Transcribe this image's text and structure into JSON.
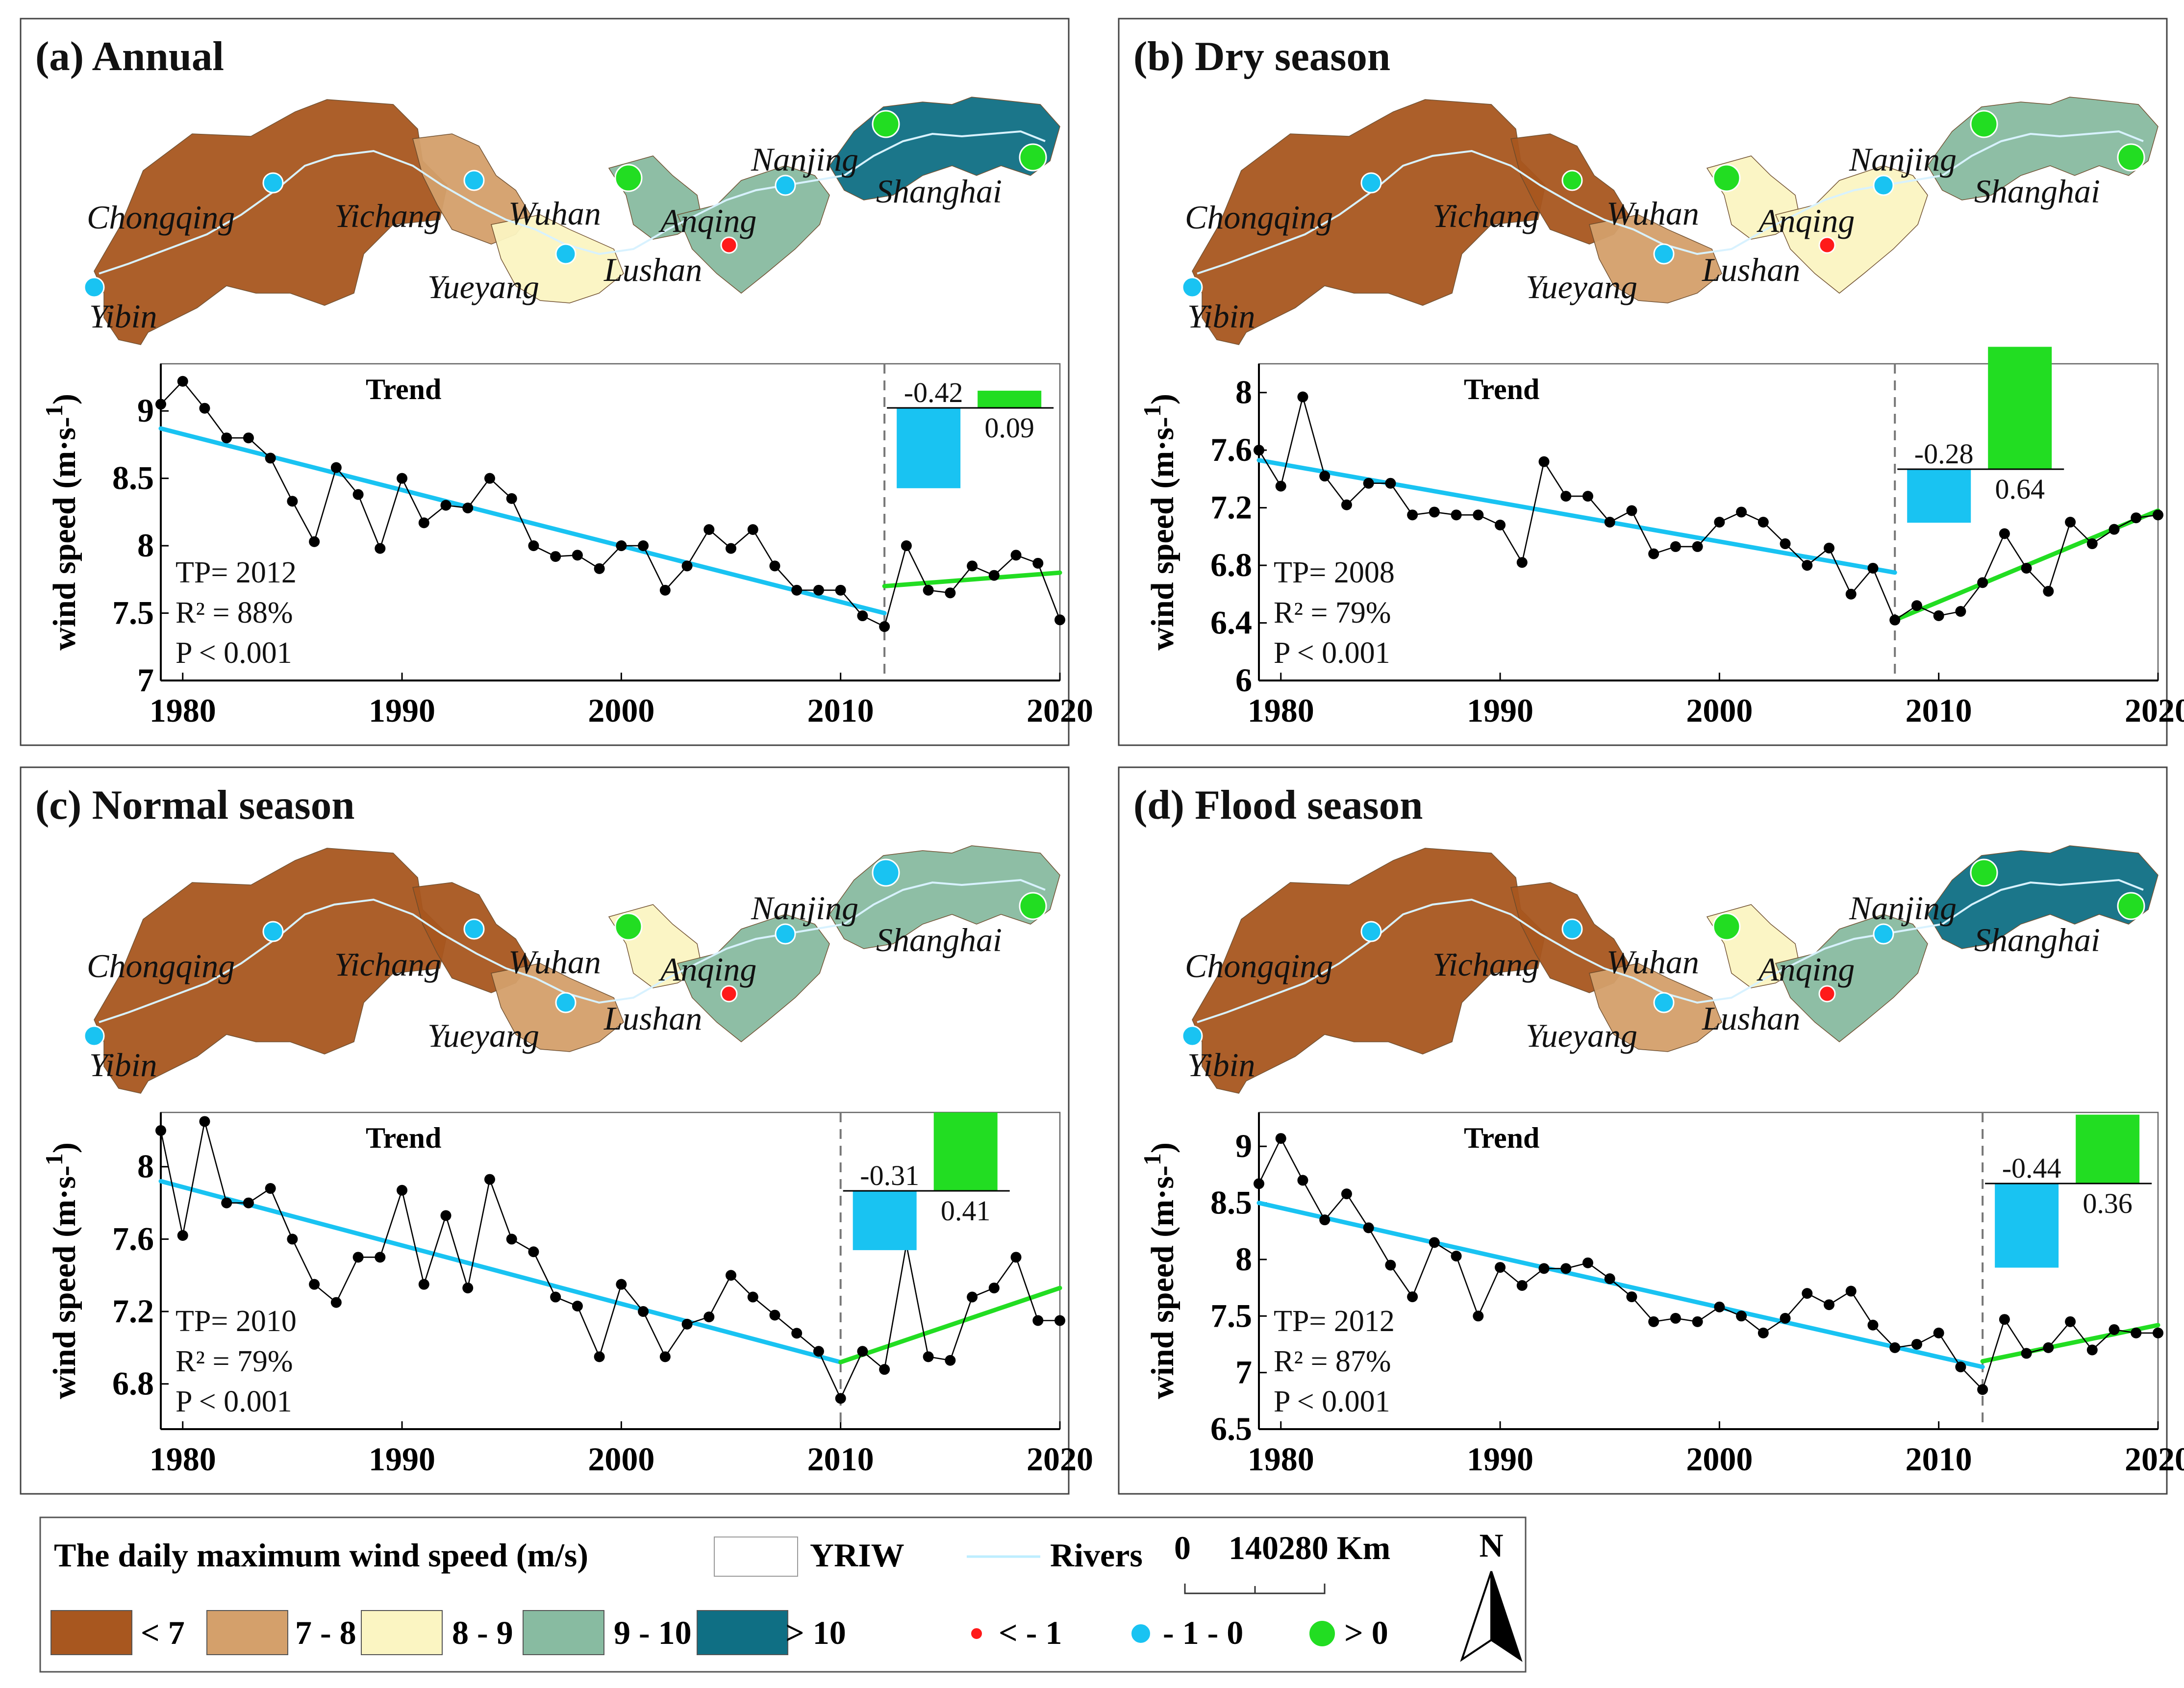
{
  "legend": {
    "title": "The daily maximum wind speed (m/s)",
    "yriw_label": "YRIW",
    "rivers_label": "Rivers",
    "scale_labels": [
      "0",
      "140",
      "280 Km"
    ],
    "north_label": "N",
    "classes": [
      {
        "label": "< 7",
        "color": "#a8571f"
      },
      {
        "label": "7 - 8",
        "color": "#d4a06b"
      },
      {
        "label": "8 - 9",
        "color": "#fbf5c2"
      },
      {
        "label": "9 - 10",
        "color": "#88bba1"
      },
      {
        "label": "> 10",
        "color": "#0f6f84"
      }
    ],
    "trend_classes": [
      {
        "label": "< - 1",
        "color": "#ff1a1a"
      },
      {
        "label": "- 1 - 0",
        "color": "#19c3f2"
      },
      {
        "label": "> 0",
        "color": "#22dd22"
      }
    ]
  },
  "cities": [
    "Chongqing",
    "Yichang",
    "Wuhan",
    "Anqing",
    "Nanjing",
    "Shanghai",
    "Yueyang",
    "Lushan",
    "Yibin"
  ],
  "panels": [
    {
      "title": "(a) Annual",
      "region_colors": [
        "#a8571f",
        "#d4a06b",
        "#fbf5c2",
        "#88bba1",
        "#88bba1",
        "#0f6f84"
      ],
      "station_colors": {
        "Yibin": "#19c3f2",
        "Chongqing": "#19c3f2",
        "Yichang": "#19c3f2",
        "Yueyang": "#19c3f2",
        "Wuhan": "#22dd22",
        "Anqing": "#ff1a1a",
        "Nanjing": "#19c3f2",
        "Upper": "#22dd22",
        "Shanghai": "#22dd22"
      }
    },
    {
      "title": "(b) Dry season",
      "region_colors": [
        "#a8571f",
        "#a8571f",
        "#d4a06b",
        "#fbf5c2",
        "#fbf5c2",
        "#88bba1"
      ],
      "station_colors": {
        "Yibin": "#19c3f2",
        "Chongqing": "#19c3f2",
        "Yichang": "#22dd22",
        "Yueyang": "#19c3f2",
        "Wuhan": "#22dd22",
        "Anqing": "#ff1a1a",
        "Nanjing": "#19c3f2",
        "Upper": "#22dd22",
        "Shanghai": "#22dd22"
      }
    },
    {
      "title": "(c) Normal season",
      "region_colors": [
        "#a8571f",
        "#a8571f",
        "#d4a06b",
        "#fbf5c2",
        "#88bba1",
        "#88bba1"
      ],
      "station_colors": {
        "Yibin": "#19c3f2",
        "Chongqing": "#19c3f2",
        "Yichang": "#19c3f2",
        "Yueyang": "#19c3f2",
        "Wuhan": "#22dd22",
        "Anqing": "#ff1a1a",
        "Nanjing": "#19c3f2",
        "Upper": "#19c3f2",
        "Shanghai": "#22dd22"
      }
    },
    {
      "title": "(d) Flood season",
      "region_colors": [
        "#a8571f",
        "#a8571f",
        "#d4a06b",
        "#fbf5c2",
        "#88bba1",
        "#0f6f84"
      ],
      "station_colors": {
        "Yibin": "#19c3f2",
        "Chongqing": "#19c3f2",
        "Yichang": "#19c3f2",
        "Yueyang": "#19c3f2",
        "Wuhan": "#22dd22",
        "Anqing": "#ff1a1a",
        "Nanjing": "#19c3f2",
        "Upper": "#22dd22",
        "Shanghai": "#22dd22"
      }
    }
  ],
  "chart_data": [
    {
      "type": "line",
      "panel": "(a) Annual",
      "title": "Trend",
      "ylabel": "wind speed (m·s-1)",
      "ylim": [
        7,
        9.35
      ],
      "yticks": [
        7,
        7.5,
        8,
        8.5,
        9
      ],
      "ytick_labels": [
        "7",
        "7.5",
        "8",
        "8.5",
        "9"
      ],
      "xlim": [
        1979,
        2020
      ],
      "xticks": [
        1980,
        1990,
        2000,
        2010,
        2020
      ],
      "x": [
        1979,
        1980,
        1981,
        1982,
        1983,
        1984,
        1985,
        1986,
        1987,
        1988,
        1989,
        1990,
        1991,
        1992,
        1993,
        1994,
        1995,
        1996,
        1997,
        1998,
        1999,
        2000,
        2001,
        2002,
        2003,
        2004,
        2005,
        2006,
        2007,
        2008,
        2009,
        2010,
        2011,
        2012,
        2013,
        2014,
        2015,
        2016,
        2017,
        2018,
        2019,
        2020
      ],
      "y": [
        9.05,
        9.22,
        9.02,
        8.8,
        8.8,
        8.65,
        8.33,
        8.03,
        8.58,
        8.38,
        7.98,
        8.5,
        8.17,
        8.3,
        8.28,
        8.5,
        8.35,
        8.0,
        7.92,
        7.93,
        7.83,
        8.0,
        8.0,
        7.67,
        7.85,
        8.12,
        7.98,
        8.12,
        7.85,
        7.67,
        7.67,
        7.67,
        7.48,
        7.4,
        8.0,
        7.67,
        7.65,
        7.85,
        7.78,
        7.93,
        7.87,
        7.45
      ],
      "tp": 2012,
      "fit1": {
        "x": [
          1979,
          2012
        ],
        "y": [
          8.87,
          7.5
        ],
        "color": "#19c3f2"
      },
      "fit2": {
        "x": [
          2012,
          2020
        ],
        "y": [
          7.7,
          7.8
        ],
        "color": "#22dd22"
      },
      "stats": [
        "TP= 2012",
        "R² = 88%",
        "P  < 0.001"
      ],
      "slopes": {
        "before": -0.42,
        "after": 0.09
      },
      "slope_labels": [
        "-0.42",
        "0.09"
      ]
    },
    {
      "type": "line",
      "panel": "(b) Dry season",
      "title": "Trend",
      "ylabel": "wind speed (m·s-1)",
      "ylim": [
        6,
        8.2
      ],
      "yticks": [
        6,
        6.4,
        6.8,
        7.2,
        7.6,
        8
      ],
      "ytick_labels": [
        "6",
        "6.4",
        "6.8",
        "7.2",
        "7.6",
        "8"
      ],
      "xlim": [
        1979,
        2020
      ],
      "xticks": [
        1980,
        1990,
        2000,
        2010,
        2020
      ],
      "x": [
        1979,
        1980,
        1981,
        1982,
        1983,
        1984,
        1985,
        1986,
        1987,
        1988,
        1989,
        1990,
        1991,
        1992,
        1993,
        1994,
        1995,
        1996,
        1997,
        1998,
        1999,
        2000,
        2001,
        2002,
        2003,
        2004,
        2005,
        2006,
        2007,
        2008,
        2009,
        2010,
        2011,
        2012,
        2013,
        2014,
        2015,
        2016,
        2017,
        2018,
        2019,
        2020
      ],
      "y": [
        7.6,
        7.35,
        7.97,
        7.42,
        7.22,
        7.37,
        7.37,
        7.15,
        7.17,
        7.15,
        7.15,
        7.08,
        6.82,
        7.52,
        7.28,
        7.28,
        7.1,
        7.18,
        6.88,
        6.93,
        6.93,
        7.1,
        7.17,
        7.1,
        6.95,
        6.8,
        6.92,
        6.6,
        6.78,
        6.42,
        6.52,
        6.45,
        6.48,
        6.68,
        7.02,
        6.78,
        6.62,
        7.1,
        6.95,
        7.05,
        7.13,
        7.15
      ],
      "tp": 2008,
      "fit1": {
        "x": [
          1979,
          2008
        ],
        "y": [
          7.53,
          6.75
        ],
        "color": "#19c3f2"
      },
      "fit2": {
        "x": [
          2008,
          2020
        ],
        "y": [
          6.42,
          7.18
        ],
        "color": "#22dd22"
      },
      "stats": [
        "TP= 2008",
        "R² = 79%",
        "P  < 0.001"
      ],
      "slopes": {
        "before": -0.28,
        "after": 0.64
      },
      "slope_labels": [
        "-0.28",
        "0.64"
      ]
    },
    {
      "type": "line",
      "panel": "(c) Normal season",
      "title": "Trend",
      "ylabel": "wind speed (m·s-1)",
      "ylim": [
        6.55,
        8.3
      ],
      "yticks": [
        6.8,
        7.2,
        7.6,
        8
      ],
      "ytick_labels": [
        "6.8",
        "7.2",
        "7.6",
        "8"
      ],
      "xlim": [
        1979,
        2020
      ],
      "xticks": [
        1980,
        1990,
        2000,
        2010,
        2020
      ],
      "x": [
        1979,
        1980,
        1981,
        1982,
        1983,
        1984,
        1985,
        1986,
        1987,
        1988,
        1989,
        1990,
        1991,
        1992,
        1993,
        1994,
        1995,
        1996,
        1997,
        1998,
        1999,
        2000,
        2001,
        2002,
        2003,
        2004,
        2005,
        2006,
        2007,
        2008,
        2009,
        2010,
        2011,
        2012,
        2013,
        2014,
        2015,
        2016,
        2017,
        2018,
        2019,
        2020
      ],
      "y": [
        8.2,
        7.62,
        8.25,
        7.8,
        7.8,
        7.88,
        7.6,
        7.35,
        7.25,
        7.5,
        7.5,
        7.87,
        7.35,
        7.73,
        7.33,
        7.93,
        7.6,
        7.53,
        7.28,
        7.23,
        6.95,
        7.35,
        7.2,
        6.95,
        7.13,
        7.17,
        7.4,
        7.28,
        7.18,
        7.08,
        6.98,
        6.72,
        6.98,
        6.88,
        7.57,
        6.95,
        6.93,
        7.28,
        7.33,
        7.5,
        7.15,
        7.15
      ],
      "tp": 2010,
      "fit1": {
        "x": [
          1979,
          2010
        ],
        "y": [
          7.92,
          6.92
        ],
        "color": "#19c3f2"
      },
      "fit2": {
        "x": [
          2010,
          2020
        ],
        "y": [
          6.92,
          7.33
        ],
        "color": "#22dd22"
      },
      "stats": [
        "TP= 2010",
        "R² = 79%",
        "P  < 0.001"
      ],
      "slopes": {
        "before": -0.31,
        "after": 0.41
      },
      "slope_labels": [
        "-0.31",
        "0.41"
      ]
    },
    {
      "type": "line",
      "panel": "(d) Flood season",
      "title": "Trend",
      "ylabel": "wind speed (m·s-1)",
      "ylim": [
        6.5,
        9.3
      ],
      "yticks": [
        6.5,
        7,
        7.5,
        8,
        8.5,
        9
      ],
      "ytick_labels": [
        "6.5",
        "7",
        "7.5",
        "8",
        "8.5",
        "9"
      ],
      "xlim": [
        1979,
        2020
      ],
      "xticks": [
        1980,
        1990,
        2000,
        2010,
        2020
      ],
      "x": [
        1979,
        1980,
        1981,
        1982,
        1983,
        1984,
        1985,
        1986,
        1987,
        1988,
        1989,
        1990,
        1991,
        1992,
        1993,
        1994,
        1995,
        1996,
        1997,
        1998,
        1999,
        2000,
        2001,
        2002,
        2003,
        2004,
        2005,
        2006,
        2007,
        2008,
        2009,
        2010,
        2011,
        2012,
        2013,
        2014,
        2015,
        2016,
        2017,
        2018,
        2019,
        2020
      ],
      "y": [
        8.67,
        9.07,
        8.7,
        8.35,
        8.58,
        8.28,
        7.95,
        7.67,
        8.15,
        8.03,
        7.5,
        7.93,
        7.77,
        7.92,
        7.92,
        7.97,
        7.83,
        7.67,
        7.45,
        7.48,
        7.45,
        7.58,
        7.5,
        7.35,
        7.48,
        7.7,
        7.6,
        7.72,
        7.42,
        7.22,
        7.25,
        7.35,
        7.05,
        6.85,
        7.47,
        7.17,
        7.22,
        7.45,
        7.2,
        7.38,
        7.35,
        7.35
      ],
      "tp": 2012,
      "fit1": {
        "x": [
          1979,
          2012
        ],
        "y": [
          8.5,
          7.05
        ],
        "color": "#19c3f2"
      },
      "fit2": {
        "x": [
          2012,
          2020
        ],
        "y": [
          7.1,
          7.42
        ],
        "color": "#22dd22"
      },
      "stats": [
        "TP= 2012",
        "R² = 87%",
        "P  < 0.001"
      ],
      "slopes": {
        "before": -0.44,
        "after": 0.36
      },
      "slope_labels": [
        "-0.44",
        "0.36"
      ]
    }
  ]
}
